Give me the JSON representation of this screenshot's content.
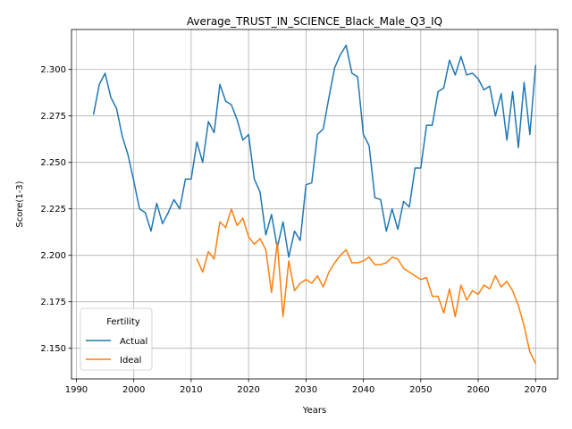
{
  "chart_data": {
    "type": "line",
    "title": "Average_TRUST_IN_SCIENCE_Black_Male_Q3_IQ",
    "xlabel": "Years",
    "ylabel": "Score(1-3)",
    "xlim": [
      1989.15,
      2073.85
    ],
    "ylim": [
      2.1335,
      2.3215
    ],
    "xticks": [
      1990,
      2000,
      2010,
      2020,
      2030,
      2040,
      2050,
      2060,
      2070
    ],
    "yticks": [
      2.15,
      2.175,
      2.2,
      2.225,
      2.25,
      2.275,
      2.3
    ],
    "grid": true,
    "legend": {
      "title": "Fertility",
      "placement": "lower-left"
    },
    "series": [
      {
        "name": "Actual",
        "color": "#1f77b4",
        "x": [
          1993,
          1994,
          1995,
          1996,
          1997,
          1998,
          1999,
          2000,
          2001,
          2002,
          2003,
          2004,
          2005,
          2006,
          2007,
          2008,
          2009,
          2010,
          2011,
          2012,
          2013,
          2014,
          2015,
          2016,
          2017,
          2018,
          2019,
          2020,
          2021,
          2022,
          2023,
          2024,
          2025,
          2026,
          2027,
          2028,
          2029,
          2030,
          2031,
          2032,
          2033,
          2034,
          2035,
          2036,
          2037,
          2038,
          2039,
          2040,
          2041,
          2042,
          2043,
          2044,
          2045,
          2046,
          2047,
          2048,
          2049,
          2050,
          2051,
          2052,
          2053,
          2054,
          2055,
          2056,
          2057,
          2058,
          2059,
          2060,
          2061,
          2062,
          2063,
          2064,
          2065,
          2066,
          2067,
          2068,
          2069,
          2070
        ],
        "values": [
          2.276,
          2.292,
          2.298,
          2.285,
          2.279,
          2.264,
          2.254,
          2.24,
          2.225,
          2.223,
          2.213,
          2.228,
          2.217,
          2.223,
          2.23,
          2.225,
          2.241,
          2.241,
          2.261,
          2.25,
          2.272,
          2.266,
          2.292,
          2.283,
          2.281,
          2.273,
          2.262,
          2.265,
          2.241,
          2.234,
          2.211,
          2.222,
          2.204,
          2.218,
          2.199,
          2.213,
          2.208,
          2.238,
          2.239,
          2.265,
          2.268,
          2.285,
          2.301,
          2.308,
          2.313,
          2.298,
          2.296,
          2.265,
          2.259,
          2.231,
          2.23,
          2.213,
          2.225,
          2.214,
          2.229,
          2.226,
          2.247,
          2.247,
          2.27,
          2.27,
          2.288,
          2.29,
          2.305,
          2.297,
          2.307,
          2.297,
          2.298,
          2.295,
          2.289,
          2.291,
          2.275,
          2.287,
          2.262,
          2.288,
          2.258,
          2.293,
          2.265,
          2.302
        ]
      },
      {
        "name": "Ideal",
        "color": "#ff7f0e",
        "x": [
          2011,
          2012,
          2013,
          2014,
          2015,
          2016,
          2017,
          2018,
          2019,
          2020,
          2021,
          2022,
          2023,
          2024,
          2025,
          2026,
          2027,
          2028,
          2029,
          2030,
          2031,
          2032,
          2033,
          2034,
          2035,
          2036,
          2037,
          2038,
          2039,
          2040,
          2041,
          2042,
          2043,
          2044,
          2045,
          2046,
          2047,
          2048,
          2049,
          2050,
          2051,
          2052,
          2053,
          2054,
          2055,
          2056,
          2057,
          2058,
          2059,
          2060,
          2061,
          2062,
          2063,
          2064,
          2065,
          2066,
          2067,
          2068,
          2069,
          2070
        ],
        "values": [
          2.198,
          2.191,
          2.202,
          2.198,
          2.218,
          2.215,
          2.225,
          2.216,
          2.22,
          2.21,
          2.206,
          2.209,
          2.203,
          2.18,
          2.207,
          2.167,
          2.197,
          2.181,
          2.185,
          2.187,
          2.185,
          2.189,
          2.183,
          2.191,
          2.196,
          2.2,
          2.203,
          2.196,
          2.196,
          2.197,
          2.199,
          2.195,
          2.195,
          2.196,
          2.199,
          2.198,
          2.193,
          2.191,
          2.189,
          2.187,
          2.188,
          2.178,
          2.178,
          2.169,
          2.182,
          2.167,
          2.184,
          2.176,
          2.181,
          2.179,
          2.184,
          2.182,
          2.189,
          2.183,
          2.186,
          2.181,
          2.173,
          2.162,
          2.148,
          2.142
        ]
      }
    ]
  }
}
